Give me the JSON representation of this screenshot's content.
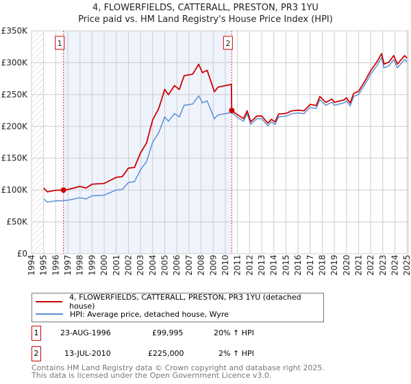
{
  "header": {
    "title": "4, FLOWERFIELDS, CATTERALL, PRESTON, PR3 1YU",
    "subtitle": "Price paid vs. HM Land Registry's House Price Index (HPI)"
  },
  "chart_data": {
    "type": "line",
    "title": "4, FLOWERFIELDS, CATTERALL, PRESTON, PR3 1YU",
    "subtitle": "Price paid vs. HM Land Registry's House Price Index (HPI)",
    "xlim": [
      1994,
      2025.1
    ],
    "ylim": [
      0,
      350000
    ],
    "x_ticks": [
      "1994",
      "1995",
      "1996",
      "1997",
      "1998",
      "1999",
      "2000",
      "2001",
      "2002",
      "2003",
      "2004",
      "2005",
      "2006",
      "2007",
      "2008",
      "2009",
      "2010",
      "2011",
      "2012",
      "2013",
      "2014",
      "2015",
      "2016",
      "2017",
      "2018",
      "2019",
      "2020",
      "2021",
      "2022",
      "2023",
      "2024",
      "2025"
    ],
    "y_ticks": [
      {
        "v": 0,
        "label": "£0"
      },
      {
        "v": 50000,
        "label": "£50K"
      },
      {
        "v": 100000,
        "label": "£100K"
      },
      {
        "v": 150000,
        "label": "£150K"
      },
      {
        "v": 200000,
        "label": "£200K"
      },
      {
        "v": 250000,
        "label": "£250K"
      },
      {
        "v": 300000,
        "label": "£300K"
      },
      {
        "v": 350000,
        "label": "£350K"
      }
    ],
    "grid": true,
    "series": [
      {
        "name": "4, FLOWERFIELDS, CATTERALL, PRESTON, PR3 1YU (detached house)",
        "color": "#cc0000",
        "x": [
          1995,
          1995.3,
          1996,
          1996.64,
          1997,
          1998,
          1998.5,
          1999,
          2000,
          2001,
          2001.5,
          2002,
          2002.5,
          2003,
          2003.5,
          2004,
          2004.5,
          2005,
          2005.3,
          2005.8,
          2006.2,
          2006.6,
          2007.3,
          2007.8,
          2008.1,
          2008.5,
          2009.1,
          2009.4,
          2010,
          2010.5,
          2010.53,
          2011,
          2011.5,
          2011.8,
          2012.1,
          2012.6,
          2013,
          2013.5,
          2013.8,
          2014.1,
          2014.4,
          2015,
          2015.5,
          2016,
          2016.5,
          2017,
          2017.5,
          2017.8,
          2018.3,
          2018.8,
          2019,
          2019.8,
          2020,
          2020.3,
          2020.6,
          2021,
          2021.5,
          2022,
          2022.5,
          2022.9,
          2023.1,
          2023.5,
          2023.9,
          2024.2,
          2024.8,
          2025
        ],
        "y": [
          103200,
          97200,
          99600,
          99995,
          100800,
          105600,
          103200,
          109200,
          110400,
          120000,
          121200,
          134400,
          135600,
          158400,
          174000,
          210000,
          228000,
          258000,
          249600,
          264000,
          258000,
          279600,
          282000,
          297600,
          284400,
          288000,
          254400,
          261600,
          264000,
          266000,
          225000,
          218300,
          212200,
          224400,
          207100,
          216200,
          216200,
          205000,
          211100,
          207100,
          219300,
          220300,
          224400,
          225400,
          224400,
          234600,
          232600,
          246800,
          237700,
          242800,
          237700,
          241700,
          244800,
          236600,
          251900,
          255000,
          270300,
          287600,
          300900,
          314200,
          297800,
          300900,
          311100,
          297800,
          311100,
          307000
        ]
      },
      {
        "name": "HPI: Average price, detached house, Wyre",
        "color": "#5b8fd4",
        "x": [
          1995,
          1995.3,
          1996,
          1996.64,
          1997,
          1998,
          1998.5,
          1999,
          2000,
          2001,
          2001.5,
          2002,
          2002.5,
          2003,
          2003.5,
          2004,
          2004.5,
          2005,
          2005.3,
          2005.8,
          2006.2,
          2006.6,
          2007.3,
          2007.8,
          2008.1,
          2008.5,
          2009.1,
          2009.4,
          2010,
          2010.53,
          2011,
          2011.5,
          2011.8,
          2012.1,
          2012.6,
          2013,
          2013.5,
          2013.8,
          2014.1,
          2014.4,
          2015,
          2015.5,
          2016,
          2016.5,
          2017,
          2017.5,
          2017.8,
          2018.3,
          2018.8,
          2019,
          2019.8,
          2020,
          2020.3,
          2020.6,
          2021,
          2021.5,
          2022,
          2022.5,
          2022.9,
          2023.1,
          2023.5,
          2023.9,
          2024.2,
          2024.8,
          2025
        ],
        "y": [
          86000,
          81000,
          83000,
          83300,
          84000,
          88000,
          86000,
          91000,
          92000,
          100000,
          101000,
          112000,
          113000,
          132000,
          145000,
          175000,
          190000,
          215000,
          208000,
          220000,
          215000,
          233000,
          235000,
          248000,
          237000,
          240000,
          212000,
          218000,
          220000,
          222000,
          214000,
          208000,
          220000,
          203000,
          212000,
          212000,
          201000,
          207000,
          203000,
          215000,
          216000,
          220000,
          221000,
          220000,
          230000,
          228000,
          242000,
          233000,
          238000,
          233000,
          237000,
          240000,
          232000,
          247000,
          250000,
          265000,
          282000,
          295000,
          308000,
          292000,
          295000,
          305000,
          292000,
          305000,
          301000
        ]
      }
    ],
    "sales": [
      {
        "id": "1",
        "x": 1996.64,
        "price": 99995,
        "date": "23-AUG-1996",
        "price_label": "£99,995",
        "hpi_diff": "20% ↑ HPI"
      },
      {
        "id": "2",
        "x": 2010.53,
        "price": 225000,
        "date": "13-JUL-2010",
        "price_label": "£225,000",
        "hpi_diff": "2% ↑ HPI"
      }
    ],
    "legend_position": "bottom"
  },
  "footer": {
    "line1": "Contains HM Land Registry data © Crown copyright and database right 2025.",
    "line2": "This data is licensed under the Open Government Licence v3.0."
  }
}
